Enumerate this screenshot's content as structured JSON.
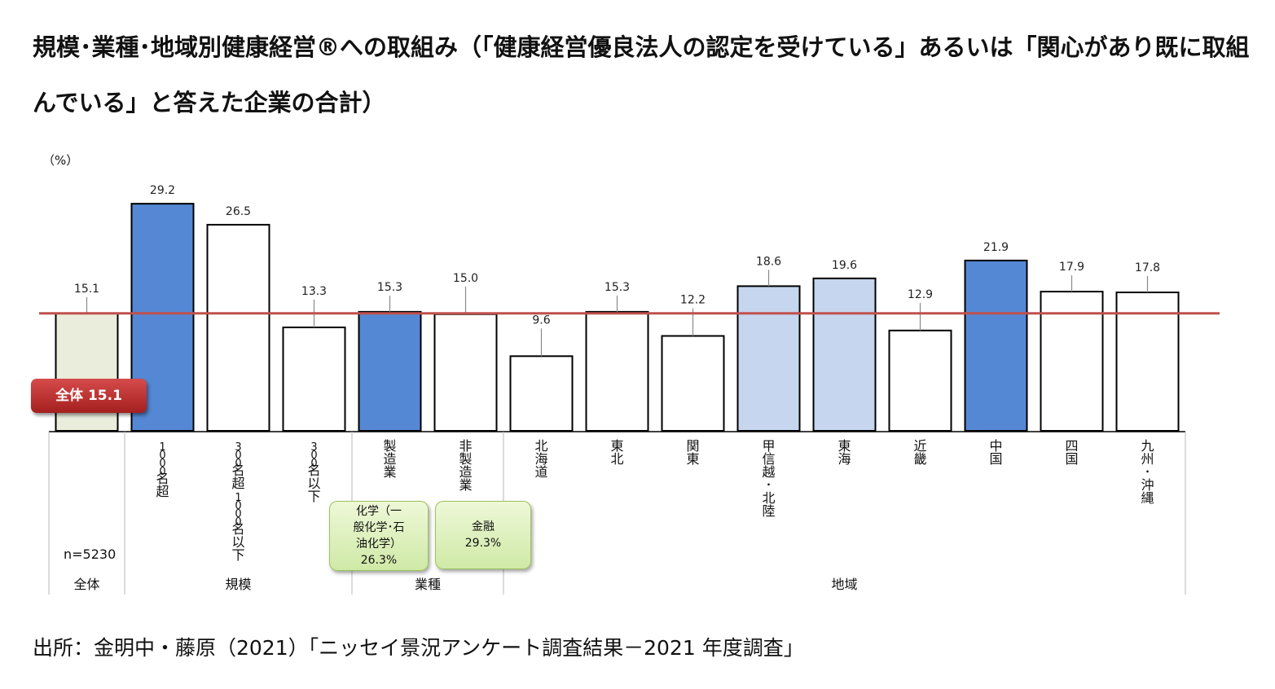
{
  "title": "規模･業種･地域別健康経営®への取組み（「健康経営優良法人の認定を受けている」あるいは「関心があり既に取組んでいる」と答えた企業の合計）",
  "source": "出所：金明中・藤原（2021）「ニッセイ景況アンケート調査結果－2021 年度調査」",
  "colors": {
    "highlight_blue": "#5588d4",
    "light_blue": "#c5d6ee",
    "overall_fill": "#eaeddc",
    "plain_fill": "#ffffff",
    "average_line": "#c0504d",
    "badge_red": "#b83030",
    "callout_green": "#d8efb5"
  },
  "badge": {
    "label": "全体 15.1"
  },
  "callouts": [
    {
      "name": "chemical",
      "lines": [
        "化学（一",
        "般化学･石",
        "油化学）",
        "26.3%"
      ]
    },
    {
      "name": "finance",
      "lines": [
        "金融",
        "29.3%"
      ]
    }
  ],
  "chart_data": {
    "type": "bar",
    "ylabel": "（%）",
    "ylim": [
      0,
      32
    ],
    "reference_line": {
      "value": 15.1
    },
    "n_label": "n=5230",
    "categories": [
      "",
      "1000名超",
      "300名超1000名以下",
      "300名以下",
      "製造業",
      "非製造業",
      "北海道",
      "東北",
      "関東",
      "甲信越･北陸",
      "東海",
      "近畿",
      "中国",
      "四国",
      "九州･沖縄"
    ],
    "values": [
      15.1,
      29.2,
      26.5,
      13.3,
      15.3,
      15.0,
      9.6,
      15.3,
      12.2,
      18.6,
      19.6,
      12.9,
      21.9,
      17.9,
      17.8
    ],
    "value_labels": [
      "15.1",
      "29.2",
      "26.5",
      "13.3",
      "15.3",
      "15.0",
      "9.6",
      "15.3",
      "12.2",
      "18.6",
      "19.6",
      "12.9",
      "21.9",
      "17.9",
      "17.8"
    ],
    "fills": [
      "overall",
      "blue",
      "white",
      "white",
      "blue",
      "white",
      "white",
      "white",
      "white",
      "lightblue",
      "lightblue",
      "white",
      "blue",
      "white",
      "white"
    ],
    "groups": [
      {
        "label": "全体",
        "start": 0,
        "end": 0
      },
      {
        "label": "規模",
        "start": 1,
        "end": 3
      },
      {
        "label": "業種",
        "start": 4,
        "end": 5
      },
      {
        "label": "地域",
        "start": 6,
        "end": 14
      }
    ]
  }
}
